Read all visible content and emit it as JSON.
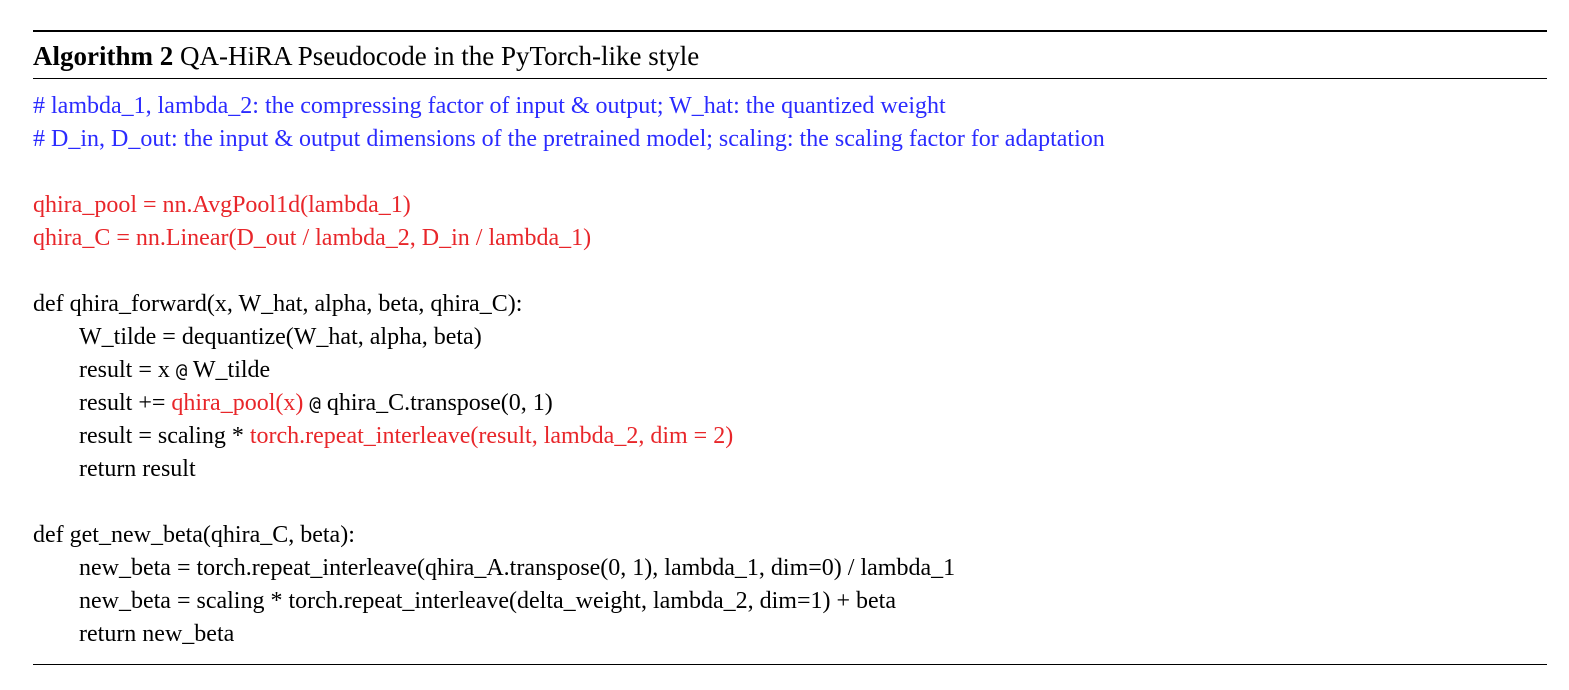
{
  "algorithm": {
    "label": "Algorithm 2",
    "title": "QA-HiRA Pseudocode in the PyTorch-like style"
  },
  "comments": [
    "# lambda_1, lambda_2: the compressing factor of input & output; W_hat: the quantized weight",
    "# D_in, D_out: the input & output dimensions of the pretrained model; scaling: the scaling factor for adaptation"
  ],
  "setup": [
    "qhira_pool = nn.AvgPool1d(lambda_1)",
    "qhira_C = nn.Linear(D_out / lambda_2, D_in / lambda_1)"
  ],
  "forward": {
    "signature": "def qhira_forward(x, W_hat, alpha, beta, qhira_C):",
    "l1": "W_tilde = dequantize(W_hat, alpha, beta)",
    "l2_a": "result = x ",
    "l2_at": "@",
    "l2_b": " W_tilde",
    "l3_a": "result += ",
    "l3_red": "qhira_pool(x)",
    "l3_sp": " ",
    "l3_at": "@",
    "l3_b": " qhira_C.transpose(0, 1)",
    "l4_a": "result = scaling * ",
    "l4_red": "torch.repeat_interleave(result, lambda_2, dim = 2)",
    "l5": "return result"
  },
  "new_beta": {
    "signature": "def get_new_beta(qhira_C, beta):",
    "l1": "new_beta = torch.repeat_interleave(qhira_A.transpose(0, 1), lambda_1, dim=0) / lambda_1",
    "l2": "new_beta = scaling * torch.repeat_interleave(delta_weight, lambda_2, dim=1) + beta",
    "l3": "return new_beta"
  },
  "colors": {
    "comment": "#2b2bff",
    "highlight": "#e8262a",
    "text": "#000000"
  }
}
